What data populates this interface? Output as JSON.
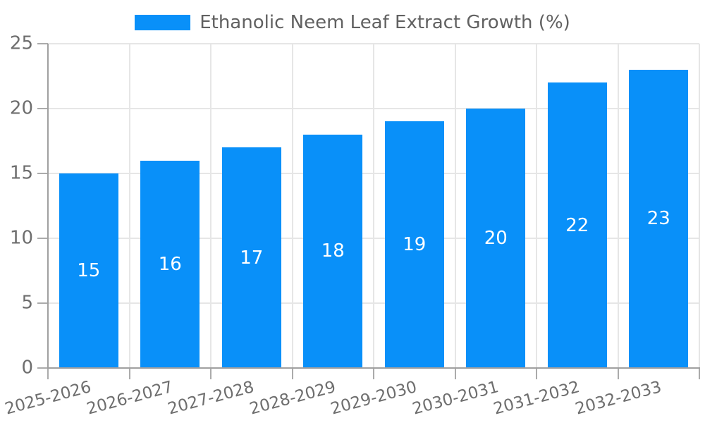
{
  "chart_data": {
    "type": "bar",
    "title": "",
    "xlabel": "",
    "ylabel": "",
    "categories": [
      "2025-2026",
      "2026-2027",
      "2027-2028",
      "2028-2029",
      "2029-2030",
      "2030-2031",
      "2031-2032",
      "2032-2033"
    ],
    "series": [
      {
        "name": "Ethanolic Neem Leaf Extract Growth (%)",
        "values": [
          15,
          16,
          17,
          18,
          19,
          20,
          22,
          23
        ],
        "color": "#0990f9"
      }
    ],
    "value_labels": [
      "15",
      "16",
      "17",
      "18",
      "19",
      "20",
      "22",
      "23"
    ],
    "ylim": [
      0,
      25
    ],
    "yticks": [
      0,
      5,
      10,
      15,
      20,
      25
    ],
    "ytick_labels": [
      "0",
      "5",
      "10",
      "15",
      "20",
      "25"
    ],
    "grid": true,
    "legend_position": "top-center",
    "x_tick_rotation_deg": -15
  },
  "style": {
    "bar_color": "#0990f9",
    "grid_color": "#e6e6e6",
    "axis_color": "#a0a0a0",
    "tick_color": "#ababab",
    "tick_label_color": "#6e6e6e",
    "legend_text_color": "#616161",
    "value_label_color": "#ffffff",
    "background": "#ffffff"
  }
}
